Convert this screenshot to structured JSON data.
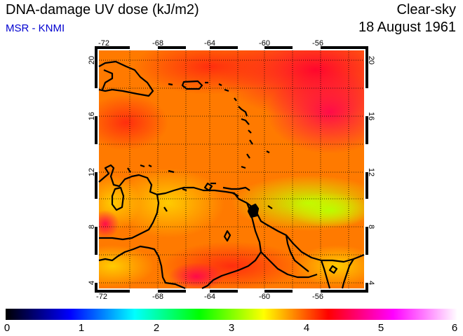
{
  "header": {
    "title": "DNA-damage UV dose (kJ/m2)",
    "subtitle": "MSR - KNMI",
    "sky_condition": "Clear-sky",
    "date": "18 August 1961"
  },
  "map": {
    "lon_ticks": [
      "-72",
      "-68",
      "-64",
      "-60",
      "-56"
    ],
    "lat_ticks": [
      "20",
      "16",
      "12",
      "8",
      "4"
    ],
    "lon_range": [
      -72,
      -53
    ],
    "lat_range": [
      3.5,
      20.5
    ],
    "grid": "dotted"
  },
  "colorbar": {
    "labels": [
      "0",
      "1",
      "2",
      "3",
      "4",
      "5",
      "6"
    ],
    "colors": [
      "#000000",
      "#0000ff",
      "#00ffff",
      "#00ff00",
      "#ffff00",
      "#ff0000",
      "#ff00ff",
      "#ffffff"
    ]
  }
}
